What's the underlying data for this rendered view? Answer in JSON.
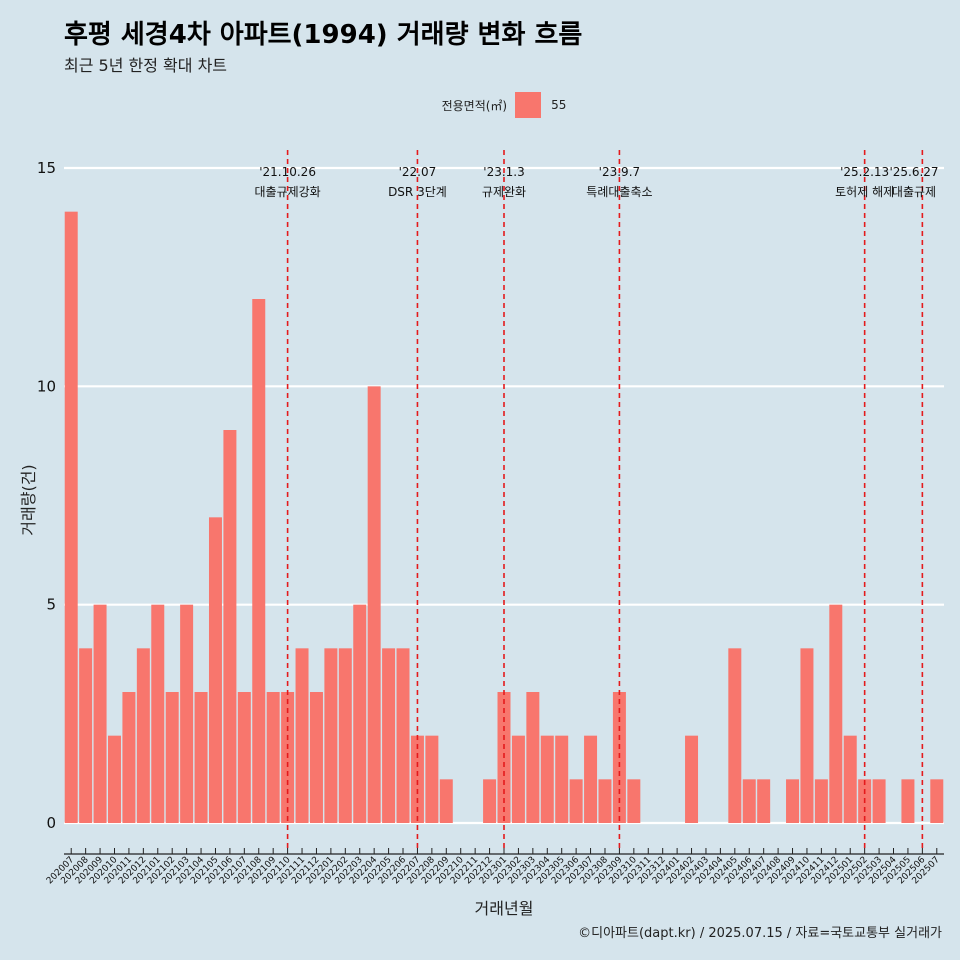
{
  "title": "후평 세경4차 아파트(1994) 거래량 변화 흐름",
  "subtitle": "최근 5년 한정 확대 차트",
  "legend": {
    "title": "전용면적(㎡)",
    "label": "55",
    "color": "#f8766d"
  },
  "caption": "©디아파트(dapt.kr) / 2025.07.15 / 자료=국토교통부 실거래가",
  "chart_data": {
    "type": "bar",
    "xlabel": "거래년월",
    "ylabel": "거래량(건)",
    "ylim": [
      0,
      15
    ],
    "yticks": [
      0,
      5,
      10,
      15
    ],
    "bar_color": "#f8766d",
    "categories": [
      "202007",
      "202008",
      "202009",
      "202010",
      "202011",
      "202012",
      "202101",
      "202102",
      "202103",
      "202104",
      "202105",
      "202106",
      "202107",
      "202108",
      "202109",
      "202110",
      "202111",
      "202112",
      "202201",
      "202202",
      "202203",
      "202204",
      "202205",
      "202206",
      "202207",
      "202208",
      "202209",
      "202210",
      "202211",
      "202212",
      "202301",
      "202302",
      "202303",
      "202304",
      "202305",
      "202306",
      "202307",
      "202308",
      "202309",
      "202310",
      "202311",
      "202312",
      "202401",
      "202402",
      "202403",
      "202404",
      "202405",
      "202406",
      "202407",
      "202408",
      "202409",
      "202410",
      "202411",
      "202412",
      "202501",
      "202502",
      "202503",
      "202504",
      "202505",
      "202506",
      "202507"
    ],
    "series": [
      {
        "name": "55",
        "values": [
          14,
          4,
          5,
          2,
          3,
          4,
          5,
          3,
          5,
          3,
          7,
          9,
          3,
          12,
          3,
          3,
          4,
          3,
          4,
          4,
          5,
          10,
          4,
          4,
          2,
          2,
          1,
          0,
          0,
          1,
          3,
          2,
          3,
          2,
          2,
          1,
          2,
          1,
          3,
          1,
          0,
          0,
          0,
          2,
          0,
          0,
          4,
          1,
          1,
          0,
          1,
          4,
          1,
          5,
          2,
          1,
          1,
          0,
          1,
          0,
          1
        ]
      }
    ],
    "events": [
      {
        "date": "'21.10.26",
        "label": "대출규제강화",
        "x": "202110"
      },
      {
        "date": "'22.07",
        "label": "DSR 3단계",
        "x": "202207"
      },
      {
        "date": "'23.1.3",
        "label": "규제완화",
        "x": "202301"
      },
      {
        "date": "'23.9.7",
        "label": "특례대출축소",
        "x": "202309"
      },
      {
        "date": "'25.2.13",
        "label": "토허제 해제",
        "x": "202502"
      },
      {
        "date": "'25.6.27",
        "label": "대출규제",
        "x": "202506"
      }
    ]
  }
}
